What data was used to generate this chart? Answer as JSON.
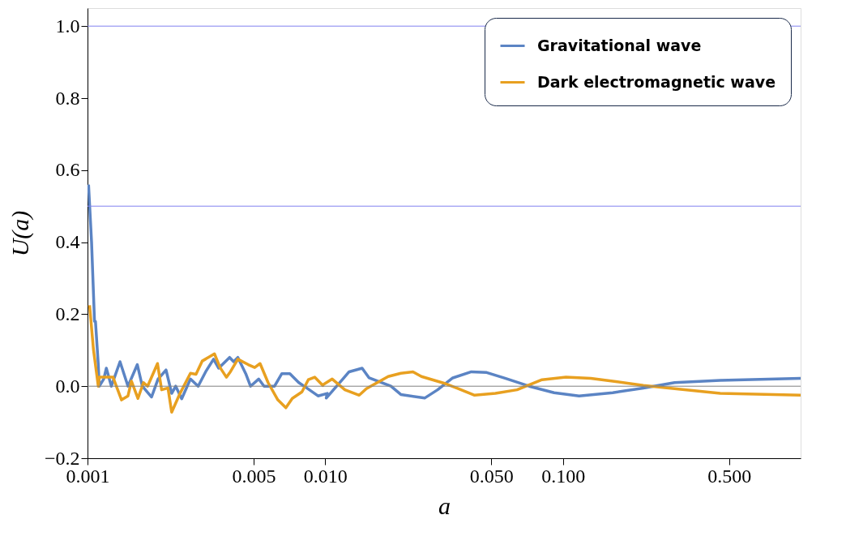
{
  "chart_data": {
    "type": "line",
    "xlabel": "a",
    "ylabel": "U(a)",
    "log": "x",
    "xlim": [
      0.001,
      1.0
    ],
    "ylim": [
      -0.2,
      1.05
    ],
    "xticks": [
      {
        "value": 0.001,
        "label": "0.001"
      },
      {
        "value": 0.005,
        "label": "0.005"
      },
      {
        "value": 0.01,
        "label": "0.010"
      },
      {
        "value": 0.05,
        "label": "0.050"
      },
      {
        "value": 0.1,
        "label": "0.100"
      },
      {
        "value": 0.5,
        "label": "0.500"
      }
    ],
    "yticks": [
      {
        "value": -0.2,
        "label": "−0.2"
      },
      {
        "value": 0.0,
        "label": "0.0"
      },
      {
        "value": 0.2,
        "label": "0.2"
      },
      {
        "value": 0.4,
        "label": "0.4"
      },
      {
        "value": 0.6,
        "label": "0.6"
      },
      {
        "value": 0.8,
        "label": "0.8"
      },
      {
        "value": 1.0,
        "label": "1.0"
      }
    ],
    "grid": false,
    "legend": "top right",
    "line_style": "solid",
    "marker": "none",
    "ref_lines": [
      {
        "axis": "y",
        "value": 1.0,
        "color": "#8080f0"
      },
      {
        "axis": "y",
        "value": 0.5,
        "color": "#8080f0"
      },
      {
        "axis": "y",
        "value": 0.0,
        "color": "#808080"
      }
    ],
    "series": [
      {
        "name": "Gravitational wave",
        "color": "#5b84c4",
        "x": [
          0.00101,
          0.00104,
          0.00107,
          0.00108,
          0.00111,
          0.00112,
          0.00117,
          0.0012,
          0.00126,
          0.00137,
          0.00148,
          0.00162,
          0.0017,
          0.00186,
          0.00198,
          0.00214,
          0.00226,
          0.00235,
          0.00249,
          0.00271,
          0.00292,
          0.00314,
          0.00339,
          0.00356,
          0.00396,
          0.00412,
          0.00429,
          0.00463,
          0.00485,
          0.00525,
          0.00553,
          0.00612,
          0.00657,
          0.0071,
          0.00774,
          0.00836,
          0.00933,
          0.0102,
          0.0101,
          0.0118,
          0.0126,
          0.0143,
          0.0153,
          0.0189,
          0.0208,
          0.0262,
          0.0297,
          0.0344,
          0.0412,
          0.0478,
          0.0571,
          0.0721,
          0.0918,
          0.117,
          0.162,
          0.218,
          0.295,
          0.459,
          1.0
        ],
        "values": [
          0.56,
          0.4,
          0.18,
          0.18,
          0.06,
          0.0,
          0.02,
          0.05,
          0.0,
          0.068,
          0.0,
          0.06,
          0.0,
          -0.03,
          0.02,
          0.045,
          -0.02,
          0.0,
          -0.035,
          0.02,
          0.0,
          0.04,
          0.075,
          0.05,
          0.08,
          0.068,
          0.08,
          0.035,
          0.0,
          0.02,
          0.0,
          0.0,
          0.035,
          0.035,
          0.01,
          -0.005,
          -0.027,
          -0.02,
          -0.033,
          0.018,
          0.04,
          0.05,
          0.023,
          0.0,
          -0.023,
          -0.033,
          -0.01,
          0.023,
          0.04,
          0.038,
          0.022,
          0.0,
          -0.018,
          -0.027,
          -0.018,
          -0.005,
          0.01,
          0.016,
          0.022
        ]
      },
      {
        "name": "Dark electromagnetic wave",
        "color": "#e8a020",
        "x": [
          0.00102,
          0.00106,
          0.00111,
          0.00112,
          0.00117,
          0.00128,
          0.00139,
          0.00148,
          0.00153,
          0.00163,
          0.00172,
          0.00179,
          0.00197,
          0.00205,
          0.00218,
          0.00226,
          0.00245,
          0.00271,
          0.00286,
          0.00304,
          0.00342,
          0.00361,
          0.00384,
          0.00399,
          0.00429,
          0.00474,
          0.00505,
          0.00532,
          0.00575,
          0.00632,
          0.00683,
          0.00727,
          0.00798,
          0.00849,
          0.00903,
          0.00977,
          0.00984,
          0.0107,
          0.0121,
          0.0139,
          0.0149,
          0.0184,
          0.0208,
          0.0234,
          0.0254,
          0.0314,
          0.0364,
          0.0425,
          0.052,
          0.0641,
          0.0817,
          0.103,
          0.131,
          0.167,
          0.218,
          0.295,
          0.459,
          1.0
        ],
        "values": [
          0.225,
          0.1,
          0.0,
          0.025,
          0.025,
          0.025,
          -0.038,
          -0.027,
          0.014,
          -0.034,
          0.01,
          0.0,
          0.063,
          -0.01,
          -0.005,
          -0.072,
          -0.02,
          0.036,
          0.033,
          0.07,
          0.09,
          0.052,
          0.025,
          0.04,
          0.075,
          0.06,
          0.052,
          0.063,
          0.01,
          -0.038,
          -0.06,
          -0.034,
          -0.016,
          0.018,
          0.025,
          0.002,
          0.005,
          0.02,
          -0.01,
          -0.025,
          -0.007,
          0.027,
          0.036,
          0.04,
          0.027,
          0.009,
          -0.007,
          -0.025,
          -0.02,
          -0.01,
          0.018,
          0.025,
          0.022,
          0.013,
          0.002,
          -0.007,
          -0.02,
          -0.025
        ]
      }
    ]
  }
}
